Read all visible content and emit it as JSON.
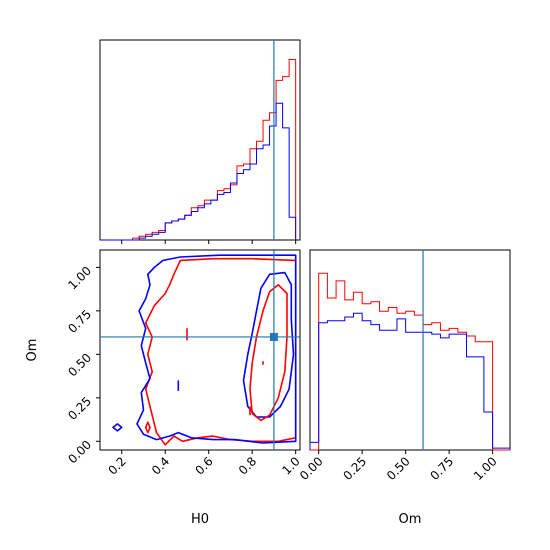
{
  "chart_data": {
    "type": "corner",
    "parameters": [
      "H0",
      "Om"
    ],
    "truths": {
      "H0": 0.9,
      "Om": 0.6
    },
    "truth_color": "#1f77b4",
    "series": [
      {
        "color": "#ff0000"
      },
      {
        "color": "#0000ff"
      }
    ],
    "panels": {
      "H0_hist": {
        "type": "histogram",
        "xlim": [
          0.1,
          1.02
        ],
        "bin_edges": [
          0.1,
          0.13,
          0.16,
          0.19,
          0.22,
          0.25,
          0.28,
          0.31,
          0.34,
          0.37,
          0.4,
          0.43,
          0.46,
          0.49,
          0.52,
          0.55,
          0.58,
          0.61,
          0.64,
          0.67,
          0.7,
          0.73,
          0.76,
          0.79,
          0.82,
          0.85,
          0.88,
          0.91,
          0.94,
          0.97,
          1.0
        ],
        "counts_red": [
          0.0,
          0.0,
          0.0,
          0.0,
          0.0,
          0.01,
          0.02,
          0.03,
          0.04,
          0.05,
          0.09,
          0.1,
          0.11,
          0.13,
          0.17,
          0.18,
          0.21,
          0.21,
          0.26,
          0.27,
          0.29,
          0.39,
          0.4,
          0.48,
          0.52,
          0.63,
          0.67,
          0.84,
          0.86,
          0.95
        ],
        "counts_blue": [
          0.0,
          0.0,
          0.0,
          0.0,
          0.0,
          0.0,
          0.01,
          0.02,
          0.03,
          0.04,
          0.09,
          0.1,
          0.11,
          0.13,
          0.15,
          0.17,
          0.19,
          0.21,
          0.24,
          0.25,
          0.3,
          0.35,
          0.37,
          0.4,
          0.48,
          0.5,
          0.6,
          0.72,
          0.59,
          0.12
        ]
      },
      "H0_Om_contour": {
        "type": "contour",
        "xlim": [
          0.1,
          1.02
        ],
        "ylim": [
          -0.05,
          1.1
        ],
        "xticks": [
          "0.2",
          "0.4",
          "0.6",
          "0.8",
          "1.0"
        ],
        "yticks": [
          "0.00",
          "0.25",
          "0.50",
          "0.75",
          "1.00"
        ],
        "xlabel": "H0",
        "ylabel": "Om"
      },
      "Om_hist": {
        "type": "histogram",
        "xlim": [
          -0.05,
          1.1
        ],
        "xticks": [
          "0.00",
          "0.25",
          "0.50",
          "0.75",
          "1.00"
        ],
        "xlabel": "Om",
        "bin_edges": [
          -0.05,
          0.0,
          0.05,
          0.1,
          0.15,
          0.2,
          0.25,
          0.3,
          0.35,
          0.4,
          0.45,
          0.5,
          0.55,
          0.6,
          0.65,
          0.7,
          0.75,
          0.8,
          0.85,
          0.9,
          0.95,
          1.0,
          1.05,
          1.1
        ],
        "counts_red": [
          0.0,
          0.93,
          0.8,
          0.89,
          0.79,
          0.83,
          0.77,
          0.78,
          0.73,
          0.75,
          0.72,
          0.73,
          0.71,
          0.66,
          0.67,
          0.63,
          0.64,
          0.62,
          0.6,
          0.57,
          0.57,
          0.0,
          0.0
        ],
        "counts_blue": [
          0.04,
          0.67,
          0.68,
          0.68,
          0.7,
          0.72,
          0.68,
          0.66,
          0.63,
          0.63,
          0.69,
          0.62,
          0.62,
          0.62,
          0.61,
          0.59,
          0.61,
          0.61,
          0.49,
          0.49,
          0.2,
          0.01,
          0.01
        ]
      }
    }
  }
}
